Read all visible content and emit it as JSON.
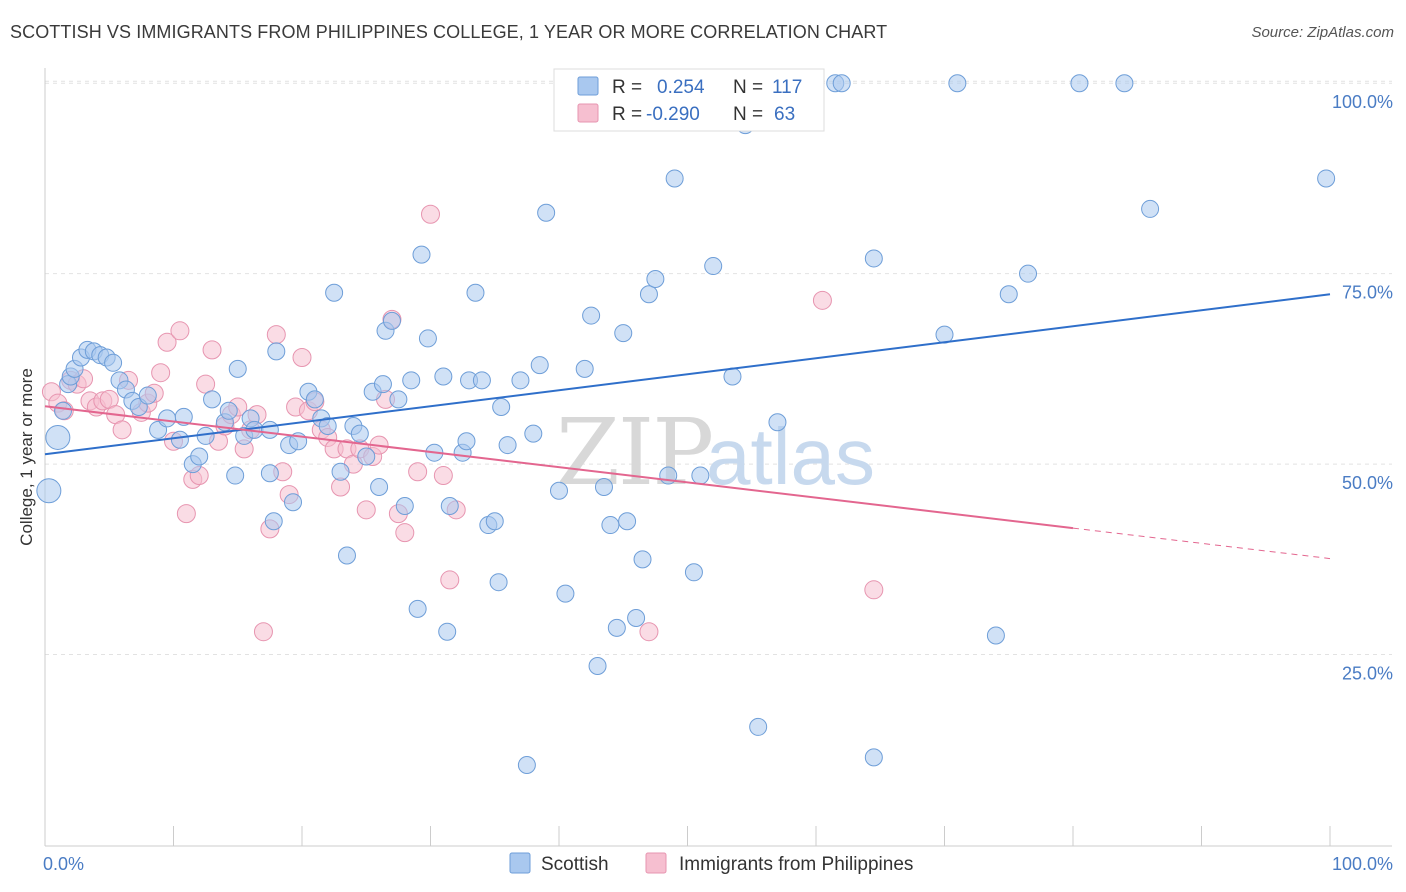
{
  "header": {
    "title": "SCOTTISH VS IMMIGRANTS FROM PHILIPPINES COLLEGE, 1 YEAR OR MORE CORRELATION CHART",
    "source": "Source: ZipAtlas.com"
  },
  "watermark": {
    "zip": "ZIP",
    "atlas": "atlas"
  },
  "colors": {
    "blue_fill": "#a9c8ef",
    "blue_stroke": "#6e9ed8",
    "blue_line": "#2f6fca",
    "pink_fill": "#f6bfd0",
    "pink_stroke": "#e795b0",
    "pink_line": "#e3668f",
    "tick_color": "#4a7cc4"
  },
  "legend": {
    "rows": [
      {
        "r_label": "R =",
        "r_value": "0.254",
        "n_label": "N =",
        "n_value": "117"
      },
      {
        "r_label": "R =",
        "r_value": "-0.290",
        "n_label": "N =",
        "n_value": "63"
      }
    ]
  },
  "bottom_legend": {
    "items": [
      "Scottish",
      "Immigrants from Philippines"
    ]
  },
  "chart_data": {
    "type": "scatter",
    "title": "SCOTTISH VS IMMIGRANTS FROM PHILIPPINES COLLEGE, 1 YEAR OR MORE CORRELATION CHART",
    "xlabel": "",
    "ylabel": "College, 1 year or more",
    "xlim": [
      0,
      100
    ],
    "ylim": [
      0,
      102
    ],
    "x_tick_labels": [
      "0.0%",
      "100.0%"
    ],
    "y_tick_labels": [
      "25.0%",
      "50.0%",
      "75.0%",
      "100.0%"
    ],
    "y_ticks": [
      25,
      50,
      75,
      100
    ],
    "grid": true,
    "legend_position": "top-center",
    "series": [
      {
        "name": "Scottish",
        "r": 0.254,
        "n": 117,
        "trend": {
          "x0": 0,
          "y0": 51.3,
          "x1": 100,
          "y1": 72.3,
          "dashed_from": null
        },
        "points": [
          [
            0.3,
            46.5
          ],
          [
            1.0,
            53.5
          ],
          [
            1.4,
            57
          ],
          [
            1.8,
            60.5
          ],
          [
            2.0,
            61.5
          ],
          [
            2.3,
            62.5
          ],
          [
            2.8,
            64
          ],
          [
            3.3,
            65
          ],
          [
            3.8,
            64.8
          ],
          [
            4.3,
            64.3
          ],
          [
            4.8,
            64
          ],
          [
            5.3,
            63.3
          ],
          [
            5.8,
            61
          ],
          [
            6.3,
            59.8
          ],
          [
            6.8,
            58.3
          ],
          [
            7.3,
            57.5
          ],
          [
            8.0,
            59
          ],
          [
            8.8,
            54.5
          ],
          [
            9.5,
            56
          ],
          [
            10.5,
            53.2
          ],
          [
            10.8,
            56.2
          ],
          [
            11.5,
            50
          ],
          [
            12.0,
            51
          ],
          [
            12.5,
            53.7
          ],
          [
            13.0,
            58.5
          ],
          [
            14.0,
            55.5
          ],
          [
            14.3,
            57
          ],
          [
            14.8,
            48.5
          ],
          [
            15.0,
            62.5
          ],
          [
            15.5,
            53.7
          ],
          [
            16.0,
            56
          ],
          [
            16.3,
            54.5
          ],
          [
            17.5,
            54.5
          ],
          [
            17.5,
            48.8
          ],
          [
            17.8,
            42.5
          ],
          [
            18.0,
            64.8
          ],
          [
            19.0,
            52.5
          ],
          [
            19.3,
            45
          ],
          [
            19.7,
            53
          ],
          [
            20.5,
            59.5
          ],
          [
            21.0,
            58.5
          ],
          [
            21.5,
            56
          ],
          [
            22.0,
            55
          ],
          [
            22.5,
            72.5
          ],
          [
            23.0,
            49
          ],
          [
            23.5,
            38
          ],
          [
            24.0,
            55
          ],
          [
            24.5,
            54
          ],
          [
            25.0,
            51
          ],
          [
            25.5,
            59.5
          ],
          [
            26.0,
            47
          ],
          [
            26.3,
            60.5
          ],
          [
            26.5,
            67.5
          ],
          [
            27.0,
            68.8
          ],
          [
            27.5,
            58.5
          ],
          [
            28.0,
            44.5
          ],
          [
            28.5,
            61
          ],
          [
            29.0,
            31
          ],
          [
            29.3,
            77.5
          ],
          [
            29.8,
            66.5
          ],
          [
            30.3,
            51.5
          ],
          [
            31.0,
            61.5
          ],
          [
            31.3,
            28
          ],
          [
            31.5,
            44.5
          ],
          [
            32.5,
            51.5
          ],
          [
            32.8,
            53
          ],
          [
            33.0,
            61
          ],
          [
            33.5,
            72.5
          ],
          [
            34.0,
            61
          ],
          [
            34.5,
            42
          ],
          [
            35.0,
            42.5
          ],
          [
            35.3,
            34.5
          ],
          [
            35.5,
            57.5
          ],
          [
            36.0,
            52.5
          ],
          [
            37.0,
            61
          ],
          [
            37.5,
            10.5
          ],
          [
            38.0,
            54
          ],
          [
            38.5,
            63
          ],
          [
            39.0,
            83
          ],
          [
            40.0,
            46.5
          ],
          [
            40.5,
            33
          ],
          [
            41.0,
            95
          ],
          [
            42.0,
            62.5
          ],
          [
            42.5,
            69.5
          ],
          [
            43.0,
            23.5
          ],
          [
            43.5,
            47
          ],
          [
            44.0,
            42
          ],
          [
            44.5,
            28.5
          ],
          [
            45.0,
            67.2
          ],
          [
            45.3,
            42.5
          ],
          [
            46.0,
            29.8
          ],
          [
            46.5,
            37.5
          ],
          [
            47.0,
            72.3
          ],
          [
            47.5,
            74.3
          ],
          [
            48.5,
            48.5
          ],
          [
            49.0,
            87.5
          ],
          [
            50.5,
            35.8
          ],
          [
            51.0,
            48.5
          ],
          [
            52.0,
            76
          ],
          [
            53.5,
            61.5
          ],
          [
            54.5,
            94.5
          ],
          [
            55.5,
            15.5
          ],
          [
            57.0,
            55.5
          ],
          [
            59.3,
            100
          ],
          [
            61.5,
            100
          ],
          [
            64.5,
            11.5
          ],
          [
            64.5,
            77
          ],
          [
            70.0,
            67
          ],
          [
            71.0,
            100
          ],
          [
            74.0,
            27.5
          ],
          [
            75.0,
            72.3
          ],
          [
            76.5,
            75
          ],
          [
            80.5,
            100
          ],
          [
            84.0,
            100
          ],
          [
            86.0,
            83.5
          ],
          [
            99.7,
            87.5
          ],
          [
            62.0,
            100
          ]
        ]
      },
      {
        "name": "Immigrants from Philippines",
        "r": -0.29,
        "n": 63,
        "trend": {
          "x0": 0,
          "y0": 57.6,
          "x1": 100,
          "y1": 37.6,
          "dashed_from": 80
        },
        "points": [
          [
            0.5,
            59.5
          ],
          [
            1.0,
            58
          ],
          [
            1.5,
            57
          ],
          [
            2.0,
            61
          ],
          [
            2.5,
            60.5
          ],
          [
            3.0,
            61.2
          ],
          [
            3.5,
            58.3
          ],
          [
            4.0,
            57.5
          ],
          [
            4.5,
            58.3
          ],
          [
            5.0,
            58.5
          ],
          [
            5.5,
            56.5
          ],
          [
            6.0,
            54.5
          ],
          [
            6.5,
            61
          ],
          [
            7.5,
            56.8
          ],
          [
            8.0,
            58
          ],
          [
            8.5,
            59.3
          ],
          [
            9.0,
            62
          ],
          [
            9.5,
            66
          ],
          [
            10.0,
            53
          ],
          [
            10.5,
            67.5
          ],
          [
            11.0,
            43.5
          ],
          [
            11.5,
            48
          ],
          [
            12.0,
            48.5
          ],
          [
            12.5,
            60.5
          ],
          [
            13.0,
            65
          ],
          [
            13.5,
            53
          ],
          [
            14.0,
            55
          ],
          [
            14.5,
            56.5
          ],
          [
            15.0,
            57.5
          ],
          [
            15.5,
            52
          ],
          [
            16.0,
            54.5
          ],
          [
            16.5,
            56.5
          ],
          [
            17.0,
            28
          ],
          [
            17.5,
            41.5
          ],
          [
            18.0,
            67
          ],
          [
            18.5,
            49
          ],
          [
            19.0,
            46
          ],
          [
            19.5,
            57.5
          ],
          [
            20.0,
            64
          ],
          [
            20.5,
            57
          ],
          [
            21.0,
            58.2
          ],
          [
            21.5,
            54.5
          ],
          [
            22.0,
            53.5
          ],
          [
            22.5,
            52
          ],
          [
            23.0,
            47
          ],
          [
            23.5,
            52
          ],
          [
            24.0,
            50
          ],
          [
            24.5,
            52
          ],
          [
            25.0,
            44
          ],
          [
            25.5,
            51
          ],
          [
            26.0,
            52.5
          ],
          [
            26.5,
            58.5
          ],
          [
            27.0,
            69
          ],
          [
            27.5,
            43.5
          ],
          [
            28.0,
            41
          ],
          [
            29.0,
            49
          ],
          [
            30.0,
            82.8
          ],
          [
            31.0,
            48.5
          ],
          [
            31.5,
            34.8
          ],
          [
            32.0,
            44
          ],
          [
            47.0,
            28
          ],
          [
            60.5,
            71.5
          ],
          [
            64.5,
            33.5
          ]
        ]
      }
    ]
  }
}
